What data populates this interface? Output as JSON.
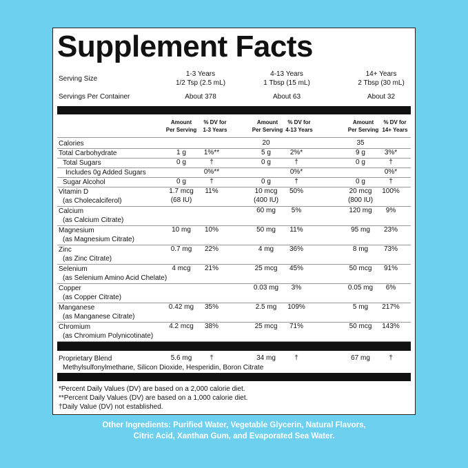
{
  "title": "Supplement Facts",
  "serving": {
    "label": "Serving Size",
    "columns": [
      {
        "ages": "1-3 Years",
        "amount": "1/2 Tsp (2.5 mL)"
      },
      {
        "ages": "4-13 Years",
        "amount": "1 Tbsp (15 mL)"
      },
      {
        "ages": "14+ Years",
        "amount": "2 Tbsp (30 mL)"
      }
    ]
  },
  "servings_per_container": {
    "label": "Servings Per Container",
    "values": [
      "About 378",
      "About 63",
      "About 32"
    ]
  },
  "column_headers": [
    {
      "amount": [
        "Amount",
        "Per Serving"
      ],
      "dv": [
        "% DV for",
        "1-3 Years"
      ]
    },
    {
      "amount": [
        "Amount",
        "Per Serving"
      ],
      "dv": [
        "% DV for",
        "4-13 Years"
      ]
    },
    {
      "amount": [
        "Amount",
        "Per Serving"
      ],
      "dv": [
        "% DV for",
        "14+ Years"
      ]
    }
  ],
  "nutrients": [
    {
      "name": "Calories",
      "sub": "",
      "v": [
        "",
        "",
        "20",
        "",
        "35",
        ""
      ]
    },
    {
      "name": "Total Carbohydrate",
      "sub": "",
      "v": [
        "1 g",
        "1%**",
        "5 g",
        "2%*",
        "9 g",
        "3%*"
      ]
    },
    {
      "name": "Total Sugars",
      "sub": "",
      "v": [
        "0 g",
        "†",
        "0 g",
        "†",
        "0 g",
        "†"
      ]
    },
    {
      "name": "Includes 0g Added Sugars",
      "sub": "",
      "v": [
        "",
        "0%**",
        "",
        "0%*",
        "",
        "0%*"
      ]
    },
    {
      "name": "Sugar Alcohol",
      "sub": "",
      "v": [
        "0 g",
        "†",
        "0 g",
        "†",
        "0 g",
        "†"
      ]
    },
    {
      "name": "Vitamin D",
      "sub": "(as Cholecalciferol)",
      "v": [
        "1.7 mcg",
        "11%",
        "10 mcg",
        "50%",
        "20 mcg",
        "100%"
      ],
      "v2": [
        "(68 IU)",
        "(400 IU)",
        "(800 IU)"
      ]
    },
    {
      "name": "Calcium",
      "sub": "(as Calcium Citrate)",
      "v": [
        "",
        "",
        "60 mg",
        "5%",
        "120 mg",
        "9%"
      ]
    },
    {
      "name": "Magnesium",
      "sub": "(as Magnesium Citrate)",
      "v": [
        "10 mg",
        "10%",
        "50 mg",
        "11%",
        "95 mg",
        "23%"
      ]
    },
    {
      "name": "Zinc",
      "sub": "(as Zinc Citrate)",
      "v": [
        "0.7 mg",
        "22%",
        "4 mg",
        "36%",
        "8 mg",
        "73%"
      ]
    },
    {
      "name": "Selenium",
      "sub": "(as Selenium Amino Acid Chelate)",
      "v": [
        "4 mcg",
        "21%",
        "25 mcg",
        "45%",
        "50 mcg",
        "91%"
      ]
    },
    {
      "name": "Copper",
      "sub": "(as Copper Citrate)",
      "v": [
        "",
        "",
        "0.03 mg",
        "3%",
        "0.05 mg",
        "6%"
      ]
    },
    {
      "name": "Manganese",
      "sub": "(as Manganese Citrate)",
      "v": [
        "0.42 mg",
        "35%",
        "2.5 mg",
        "109%",
        "5 mg",
        "217%"
      ]
    },
    {
      "name": "Chromium",
      "sub": "(as Chromium Polynicotinate)",
      "v": [
        "4.2 mcg",
        "38%",
        "25 mcg",
        "71%",
        "50 mcg",
        "143%"
      ]
    }
  ],
  "blend": {
    "name": "Proprietary Blend",
    "ingredients": "Methylsulfonylmethane, Silicon Dioxide, Hesperidin, Boron Citrate",
    "v": [
      "5.6 mg",
      "†",
      "34 mg",
      "†",
      "67 mg",
      "†"
    ]
  },
  "footnotes": [
    "*Percent Daily Values (DV) are based on a 2,000 calorie diet.",
    "**Percent Daily Values (DV) are based on a 1,000 calorie diet.",
    "†Daily Value (DV) not established."
  ],
  "other_ingredients": [
    "Other Ingredients: Purified Water, Vegetable Glycerin, Natural Flavors,",
    "Citric Acid, Xanthan Gum, and Evaporated Sea Water."
  ],
  "colors": {
    "background": "#6dd0ef",
    "panel": "#ffffff",
    "text": "#111111"
  }
}
